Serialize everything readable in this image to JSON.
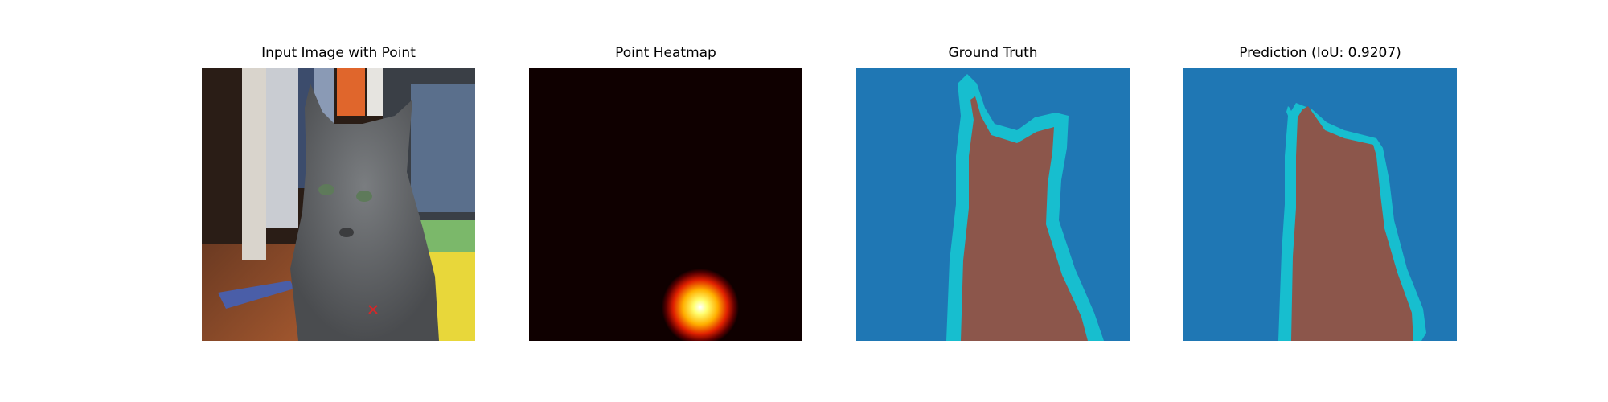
{
  "panels": [
    {
      "title": "Input Image with Point"
    },
    {
      "title": "Point Heatmap"
    },
    {
      "title": "Ground Truth"
    },
    {
      "title": "Prediction (IoU: 0.9207)"
    }
  ],
  "point_marker": {
    "symbol": "x",
    "color": "#d62728"
  },
  "colors": {
    "background_class": "#1f77b4",
    "foreground_class": "#8c564b",
    "boundary_class": "#17becf",
    "heatmap_background": "#0f0000",
    "heatmap_peak": "#ffffff"
  }
}
